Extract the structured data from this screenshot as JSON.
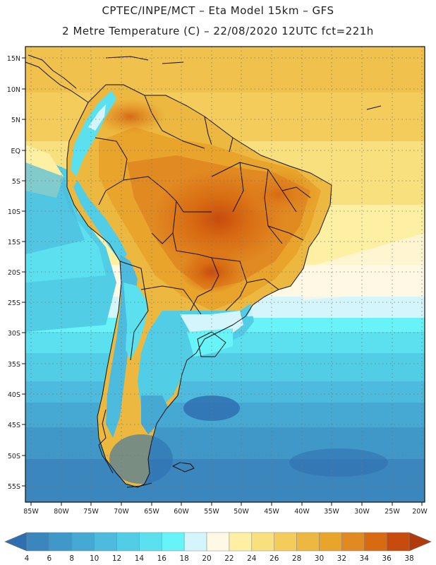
{
  "header": {
    "line1": "CPTEC/INPE/MCT –  Eta Model 15km – GFS",
    "line2": "2 Metre Temperature (C) – 22/08/2020 12UTC fct=221h"
  },
  "map": {
    "lat_labels": [
      "15N",
      "10N",
      "5N",
      "EQ",
      "5S",
      "10S",
      "15S",
      "20S",
      "25S",
      "30S",
      "35S",
      "40S",
      "45S",
      "50S",
      "55S"
    ],
    "lon_labels": [
      "85W",
      "80W",
      "75W",
      "70W",
      "65W",
      "60W",
      "55W",
      "50W",
      "45W",
      "40W",
      "35W",
      "30W",
      "25W",
      "20W"
    ]
  },
  "colorbar": {
    "labels": [
      "4",
      "6",
      "8",
      "10",
      "12",
      "14",
      "16",
      "18",
      "20",
      "22",
      "24",
      "26",
      "28",
      "30",
      "32",
      "34",
      "36",
      "38"
    ],
    "colors": [
      "#2f6fb0",
      "#3a86bd",
      "#3f98c8",
      "#45a9d3",
      "#4cbbdd",
      "#52cde6",
      "#5be0ef",
      "#67f3f8",
      "#d4f5fb",
      "#fff8e4",
      "#fdf0a3",
      "#f9e07e",
      "#f3cc5b",
      "#ecb83f",
      "#e8a42b",
      "#e18a22",
      "#d86a12",
      "#c84b0e",
      "#b03a0c"
    ]
  }
}
